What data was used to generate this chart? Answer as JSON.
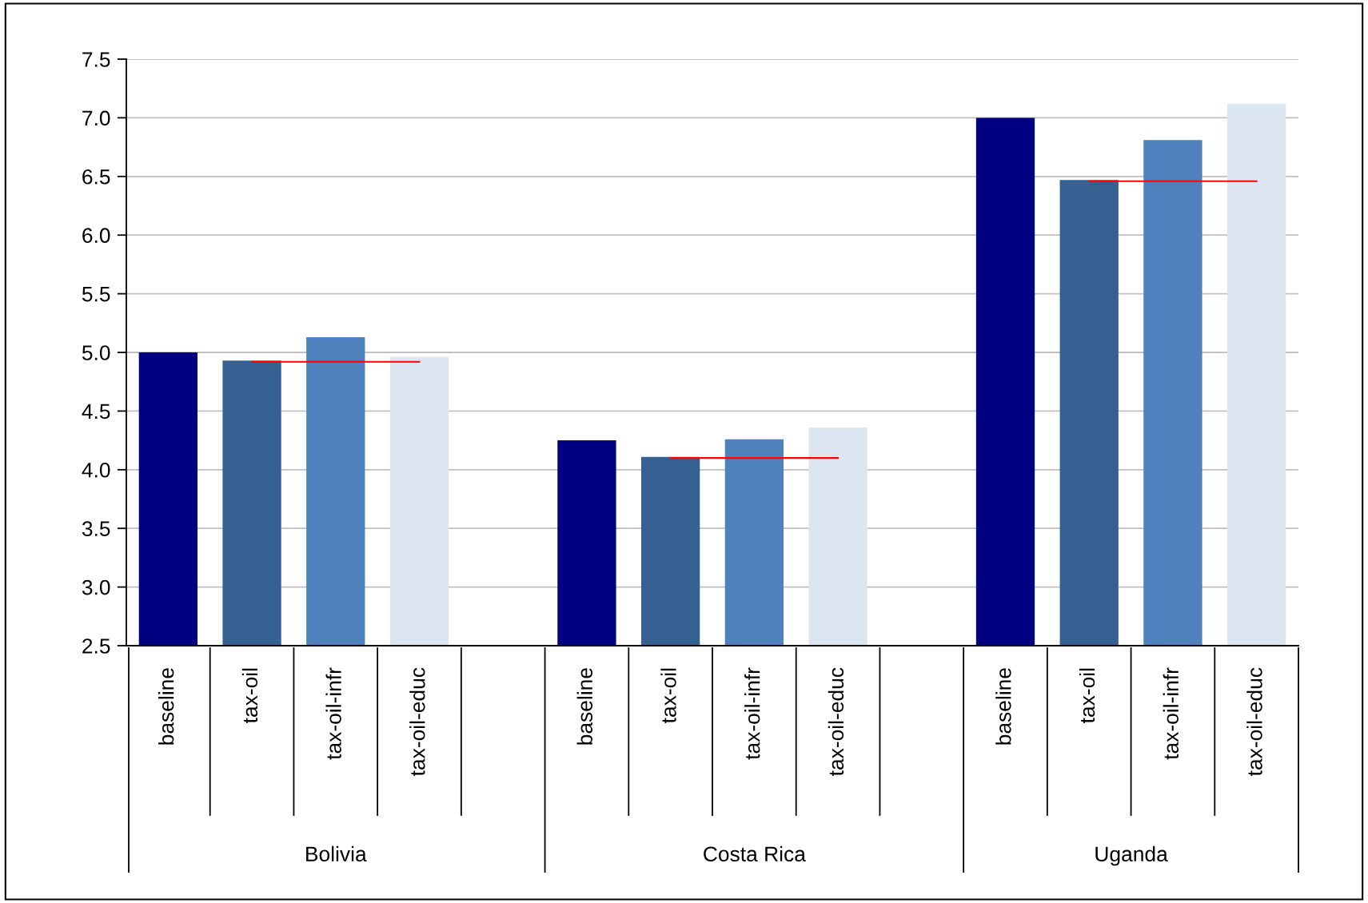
{
  "chart_data": {
    "type": "bar",
    "categories": [
      "baseline",
      "tax-oil",
      "tax-oil-infr",
      "tax-oil-educ",
      null,
      "baseline",
      "tax-oil",
      "tax-oil-infr",
      "tax-oil-educ",
      null,
      "baseline",
      "tax-oil",
      "tax-oil-infr",
      "tax-oil-educ"
    ],
    "series": [
      {
        "values": [
          5.0,
          4.93,
          5.13,
          4.96,
          null,
          4.25,
          4.11,
          4.26,
          4.36,
          null,
          7.0,
          6.47,
          6.81,
          7.12
        ],
        "colors": [
          "#000080",
          "#366092",
          "#4f81bd",
          "#dce6f1",
          "#ffffff",
          "#000080",
          "#366092",
          "#4f81bd",
          "#dce6f1",
          "#ffffff",
          "#000080",
          "#366092",
          "#4f81bd",
          "#dce6f1"
        ]
      },
      {
        "type": "line",
        "color": "#ff0000",
        "values": [
          null,
          4.92,
          4.92,
          4.92,
          null,
          null,
          4.1,
          4.1,
          4.1,
          null,
          null,
          6.46,
          6.46,
          6.46
        ]
      }
    ],
    "annotations": [
      "Bolivia",
      "Costa Rica",
      "Uganda"
    ],
    "ylim": [
      2.5,
      7.5
    ],
    "yticks": [
      {
        "value": 2.5,
        "label": "2.5"
      },
      {
        "value": 3.0,
        "label": "3.0"
      },
      {
        "value": 3.5,
        "label": "3.5"
      },
      {
        "value": 4.0,
        "label": "4.0"
      },
      {
        "value": 4.5,
        "label": "4.5"
      },
      {
        "value": 5.0,
        "label": "5.0"
      },
      {
        "value": 5.5,
        "label": "5.5"
      },
      {
        "value": 6.0,
        "label": "6.0"
      },
      {
        "value": 6.5,
        "label": "6.5"
      },
      {
        "value": 7.0,
        "label": "7.0"
      },
      {
        "value": 7.5,
        "label": "7.5"
      }
    ],
    "grid": "y"
  }
}
